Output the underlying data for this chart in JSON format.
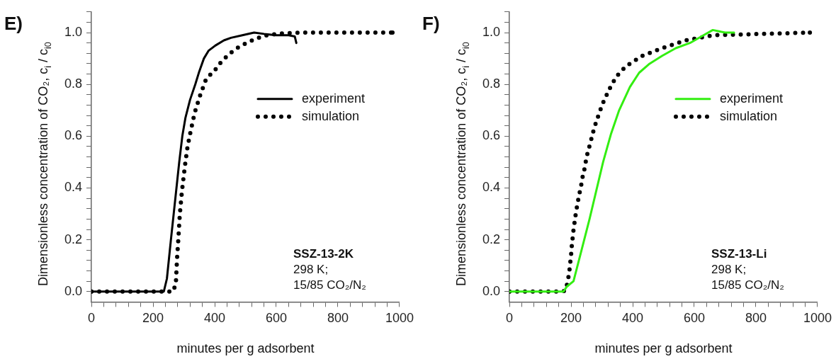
{
  "chart_data": [
    {
      "type": "line",
      "title": "E)",
      "xlabel": "minutes per g adsorbent",
      "ylabel": "Dimensionless concentration of CO₂, c$_{i}$ / c$_{i0}$",
      "xlim": [
        0,
        1000
      ],
      "ylim": [
        -0.04,
        1.08
      ],
      "xticks": [
        0,
        {
          "value": 40,
          "label": null
        },
        {
          "value": 80,
          "label": null
        },
        {
          "value": 120,
          "label": null
        },
        {
          "value": 160,
          "label": null
        },
        200,
        {
          "value": 240,
          "label": null
        },
        {
          "value": 280,
          "label": null
        },
        {
          "value": 320,
          "label": null
        },
        {
          "value": 360,
          "label": null
        },
        400,
        {
          "value": 440,
          "label": null
        },
        {
          "value": 480,
          "label": null
        },
        {
          "value": 520,
          "label": null
        },
        {
          "value": 560,
          "label": null
        },
        600,
        {
          "value": 640,
          "label": null
        },
        {
          "value": 680,
          "label": null
        },
        {
          "value": 720,
          "label": null
        },
        {
          "value": 760,
          "label": null
        },
        800,
        {
          "value": 840,
          "label": null
        },
        {
          "value": 880,
          "label": null
        },
        {
          "value": 920,
          "label": null
        },
        {
          "value": 960,
          "label": null
        },
        1000
      ],
      "yticks": [
        {
          "value": 0,
          "label": "0.0"
        },
        {
          "value": 0.04,
          "label": null
        },
        {
          "value": 0.08,
          "label": null
        },
        {
          "value": 0.12,
          "label": null
        },
        {
          "value": 0.16,
          "label": null
        },
        0.2,
        {
          "value": 0.24,
          "label": null
        },
        {
          "value": 0.28,
          "label": null
        },
        {
          "value": 0.32,
          "label": null
        },
        {
          "value": 0.36,
          "label": null
        },
        0.4,
        {
          "value": 0.44,
          "label": null
        },
        {
          "value": 0.48,
          "label": null
        },
        {
          "value": 0.52,
          "label": null
        },
        {
          "value": 0.56,
          "label": null
        },
        0.6,
        {
          "value": 0.64,
          "label": null
        },
        {
          "value": 0.68,
          "label": null
        },
        {
          "value": 0.72,
          "label": null
        },
        {
          "value": 0.76,
          "label": null
        },
        0.8,
        {
          "value": 0.84,
          "label": null
        },
        {
          "value": 0.88,
          "label": null
        },
        {
          "value": 0.92,
          "label": null
        },
        {
          "value": 0.96,
          "label": null
        },
        {
          "value": 1,
          "label": "1.0"
        },
        {
          "value": 1.04,
          "label": null
        },
        {
          "value": 1.08,
          "label": null
        }
      ],
      "grid": false,
      "legend": "top right",
      "series": [
        {
          "name": "experiment",
          "color": "#000000",
          "line_style": "solid",
          "x": [
            0,
            235,
            245,
            258,
            267,
            276,
            285,
            295,
            305,
            320,
            337,
            350,
            365,
            380,
            402,
            430,
            453,
            490,
            528,
            560,
            600,
            640,
            660,
            665
          ],
          "values": [
            0,
            0,
            0.05,
            0.2,
            0.3,
            0.4,
            0.5,
            0.6,
            0.67,
            0.74,
            0.8,
            0.85,
            0.9,
            0.93,
            0.95,
            0.97,
            0.98,
            0.99,
            1.0,
            0.995,
            0.99,
            0.99,
            0.985,
            0.96
          ]
        },
        {
          "name": "simulation",
          "color": "#000000",
          "line_style": "dotted",
          "x": [
            0,
            265,
            274,
            278,
            282,
            287,
            294,
            304,
            312,
            323,
            335,
            352,
            372,
            404,
            423,
            450,
            480,
            509,
            537,
            570,
            620,
            686,
            977
          ],
          "values": [
            0,
            0,
            0.03,
            0.13,
            0.2,
            0.3,
            0.39,
            0.49,
            0.56,
            0.625,
            0.69,
            0.755,
            0.82,
            0.86,
            0.89,
            0.92,
            0.946,
            0.963,
            0.978,
            0.99,
            0.997,
            1.0,
            1.0
          ]
        }
      ],
      "annotations": [
        "SSZ-13-2K",
        "298 K;",
        "15/85 CO₂/N₂"
      ]
    },
    {
      "type": "line",
      "title": "F)",
      "xlabel": "minutes per g adsorbent",
      "ylabel": "Dimensionless concentration of CO₂, c$_{i}$ / c$_{i0}$",
      "xlim": [
        0,
        1000
      ],
      "ylim": [
        -0.04,
        1.08
      ],
      "xticks": [
        0,
        {
          "value": 40,
          "label": null
        },
        {
          "value": 80,
          "label": null
        },
        {
          "value": 120,
          "label": null
        },
        {
          "value": 160,
          "label": null
        },
        200,
        {
          "value": 240,
          "label": null
        },
        {
          "value": 280,
          "label": null
        },
        {
          "value": 320,
          "label": null
        },
        {
          "value": 360,
          "label": null
        },
        400,
        {
          "value": 440,
          "label": null
        },
        {
          "value": 480,
          "label": null
        },
        {
          "value": 520,
          "label": null
        },
        {
          "value": 560,
          "label": null
        },
        600,
        {
          "value": 640,
          "label": null
        },
        {
          "value": 680,
          "label": null
        },
        {
          "value": 720,
          "label": null
        },
        {
          "value": 760,
          "label": null
        },
        800,
        {
          "value": 840,
          "label": null
        },
        {
          "value": 880,
          "label": null
        },
        {
          "value": 920,
          "label": null
        },
        {
          "value": 960,
          "label": null
        },
        1000
      ],
      "yticks": [
        {
          "value": 0,
          "label": "0.0"
        },
        {
          "value": 0.04,
          "label": null
        },
        {
          "value": 0.08,
          "label": null
        },
        {
          "value": 0.12,
          "label": null
        },
        {
          "value": 0.16,
          "label": null
        },
        0.2,
        {
          "value": 0.24,
          "label": null
        },
        {
          "value": 0.28,
          "label": null
        },
        {
          "value": 0.32,
          "label": null
        },
        {
          "value": 0.36,
          "label": null
        },
        0.4,
        {
          "value": 0.44,
          "label": null
        },
        {
          "value": 0.48,
          "label": null
        },
        {
          "value": 0.52,
          "label": null
        },
        {
          "value": 0.56,
          "label": null
        },
        0.6,
        {
          "value": 0.64,
          "label": null
        },
        {
          "value": 0.68,
          "label": null
        },
        {
          "value": 0.72,
          "label": null
        },
        {
          "value": 0.76,
          "label": null
        },
        0.8,
        {
          "value": 0.84,
          "label": null
        },
        {
          "value": 0.88,
          "label": null
        },
        {
          "value": 0.92,
          "label": null
        },
        {
          "value": 0.96,
          "label": null
        },
        {
          "value": 1,
          "label": "1.0"
        },
        {
          "value": 1.04,
          "label": null
        },
        {
          "value": 1.08,
          "label": null
        }
      ],
      "grid": false,
      "legend": "top right",
      "series": [
        {
          "name": "experiment",
          "color": "#33ee11",
          "line_style": "solid",
          "x": [
            0,
            175,
            187,
            208,
            234,
            260,
            282,
            304,
            330,
            356,
            391,
            421,
            455,
            495,
            540,
            586,
            630,
            660,
            700,
            729
          ],
          "values": [
            0,
            0,
            0.02,
            0.04,
            0.16,
            0.28,
            0.39,
            0.5,
            0.61,
            0.7,
            0.79,
            0.845,
            0.88,
            0.91,
            0.94,
            0.96,
            0.99,
            1.01,
            1.0,
            1.0
          ]
        },
        {
          "name": "simulation",
          "color": "#000000",
          "line_style": "dotted",
          "x": [
            0,
            156,
            182,
            189,
            194,
            197,
            200,
            202,
            205,
            208,
            212,
            216,
            221,
            226,
            232,
            237,
            243,
            248,
            254,
            262,
            269,
            276,
            286,
            295,
            306,
            319,
            332,
            350,
            378,
            430,
            495,
            573,
            664,
            975
          ],
          "values": [
            0,
            0,
            0.003,
            0.038,
            0.073,
            0.107,
            0.139,
            0.171,
            0.205,
            0.238,
            0.272,
            0.306,
            0.339,
            0.372,
            0.404,
            0.44,
            0.47,
            0.503,
            0.537,
            0.571,
            0.604,
            0.635,
            0.67,
            0.701,
            0.735,
            0.768,
            0.8,
            0.834,
            0.87,
            0.91,
            0.94,
            0.97,
            0.99,
            1.0
          ]
        }
      ],
      "annotations": [
        "SSZ-13-Li",
        "298 K;",
        "15/85 CO₂/N₂"
      ]
    }
  ]
}
